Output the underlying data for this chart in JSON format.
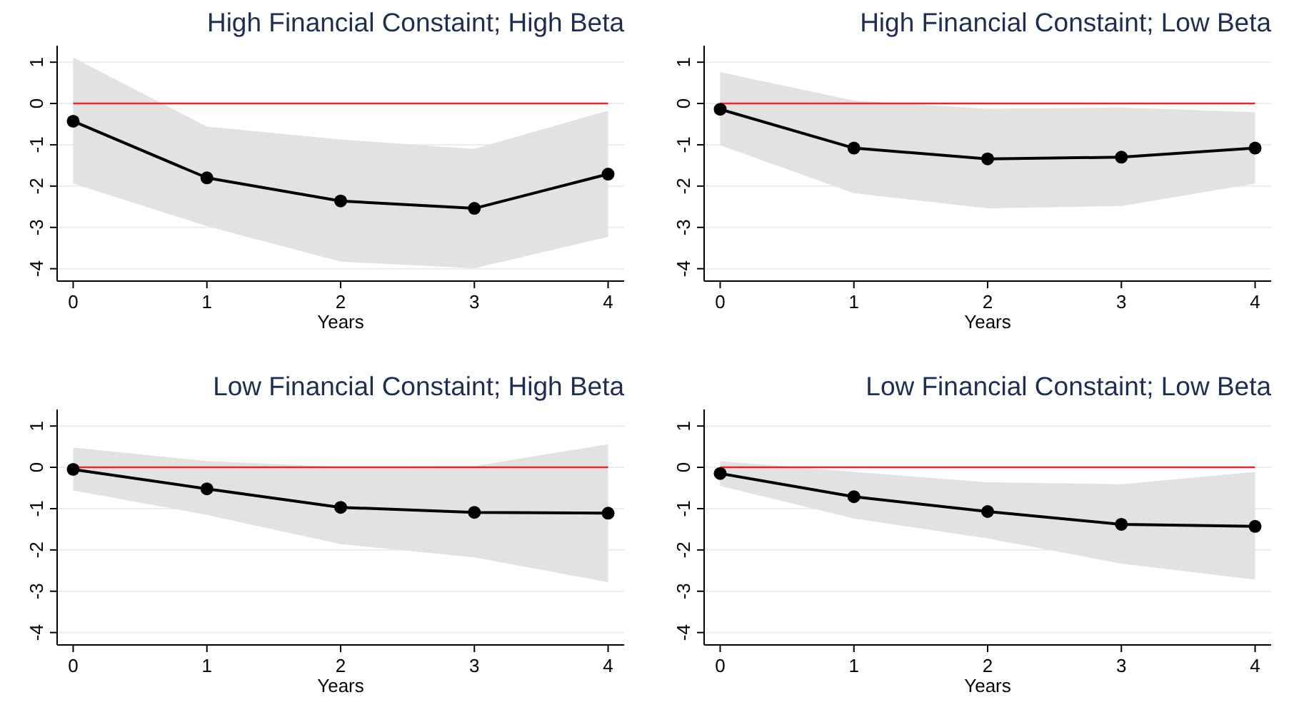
{
  "chart_data": [
    {
      "type": "line",
      "title": "High Financial Constaint; High Beta",
      "xlabel": "Years",
      "x": [
        0,
        1,
        2,
        3,
        4
      ],
      "xlim": [
        -0.12,
        4.12
      ],
      "xticks": [
        0,
        1,
        2,
        3,
        4
      ],
      "ylim": [
        -4.3,
        1.4
      ],
      "yticks": [
        -4,
        -3,
        -2,
        -1,
        0,
        1
      ],
      "grid": "y",
      "marker": "circle",
      "ref_lines": [
        {
          "axis": "y",
          "value": 0,
          "color": "#e8262a"
        }
      ],
      "series": [
        {
          "color": "#000000",
          "values": [
            -0.43,
            -1.8,
            -2.36,
            -2.54,
            -1.71
          ],
          "lower": [
            -1.94,
            -2.97,
            -3.83,
            -3.99,
            -3.23
          ],
          "upper": [
            1.11,
            -0.56,
            -0.87,
            -1.1,
            -0.17
          ]
        }
      ]
    },
    {
      "type": "line",
      "title": "High Financial Constaint; Low Beta",
      "xlabel": "Years",
      "x": [
        0,
        1,
        2,
        3,
        4
      ],
      "xlim": [
        -0.12,
        4.12
      ],
      "xticks": [
        0,
        1,
        2,
        3,
        4
      ],
      "ylim": [
        -4.3,
        1.4
      ],
      "yticks": [
        -4,
        -3,
        -2,
        -1,
        0,
        1
      ],
      "grid": "y",
      "marker": "circle",
      "ref_lines": [
        {
          "axis": "y",
          "value": 0,
          "color": "#e8262a"
        }
      ],
      "series": [
        {
          "color": "#000000",
          "values": [
            -0.14,
            -1.08,
            -1.34,
            -1.3,
            -1.08
          ],
          "lower": [
            -1.01,
            -2.17,
            -2.54,
            -2.48,
            -1.94
          ],
          "upper": [
            0.76,
            0.07,
            -0.13,
            -0.1,
            -0.21
          ]
        }
      ]
    },
    {
      "type": "line",
      "title": "Low Financial Constaint; High Beta",
      "xlabel": "Years",
      "x": [
        0,
        1,
        2,
        3,
        4
      ],
      "xlim": [
        -0.12,
        4.12
      ],
      "xticks": [
        0,
        1,
        2,
        3,
        4
      ],
      "ylim": [
        -4.3,
        1.4
      ],
      "yticks": [
        -4,
        -3,
        -2,
        -1,
        0,
        1
      ],
      "grid": "y",
      "marker": "circle",
      "ref_lines": [
        {
          "axis": "y",
          "value": 0,
          "color": "#e8262a"
        }
      ],
      "series": [
        {
          "color": "#000000",
          "values": [
            -0.05,
            -0.52,
            -0.97,
            -1.09,
            -1.11
          ],
          "lower": [
            -0.56,
            -1.15,
            -1.86,
            -2.18,
            -2.78
          ],
          "upper": [
            0.48,
            0.15,
            0.01,
            0.03,
            0.56
          ]
        }
      ]
    },
    {
      "type": "line",
      "title": "Low Financial Constaint; Low Beta",
      "xlabel": "Years",
      "x": [
        0,
        1,
        2,
        3,
        4
      ],
      "xlim": [
        -0.12,
        4.12
      ],
      "xticks": [
        0,
        1,
        2,
        3,
        4
      ],
      "ylim": [
        -4.3,
        1.4
      ],
      "yticks": [
        -4,
        -3,
        -2,
        -1,
        0,
        1
      ],
      "grid": "y",
      "marker": "circle",
      "ref_lines": [
        {
          "axis": "y",
          "value": 0,
          "color": "#e8262a"
        }
      ],
      "series": [
        {
          "color": "#000000",
          "values": [
            -0.15,
            -0.71,
            -1.07,
            -1.38,
            -1.43
          ],
          "lower": [
            -0.45,
            -1.24,
            -1.72,
            -2.33,
            -2.72
          ],
          "upper": [
            0.15,
            -0.11,
            -0.36,
            -0.41,
            -0.11
          ]
        }
      ]
    }
  ]
}
